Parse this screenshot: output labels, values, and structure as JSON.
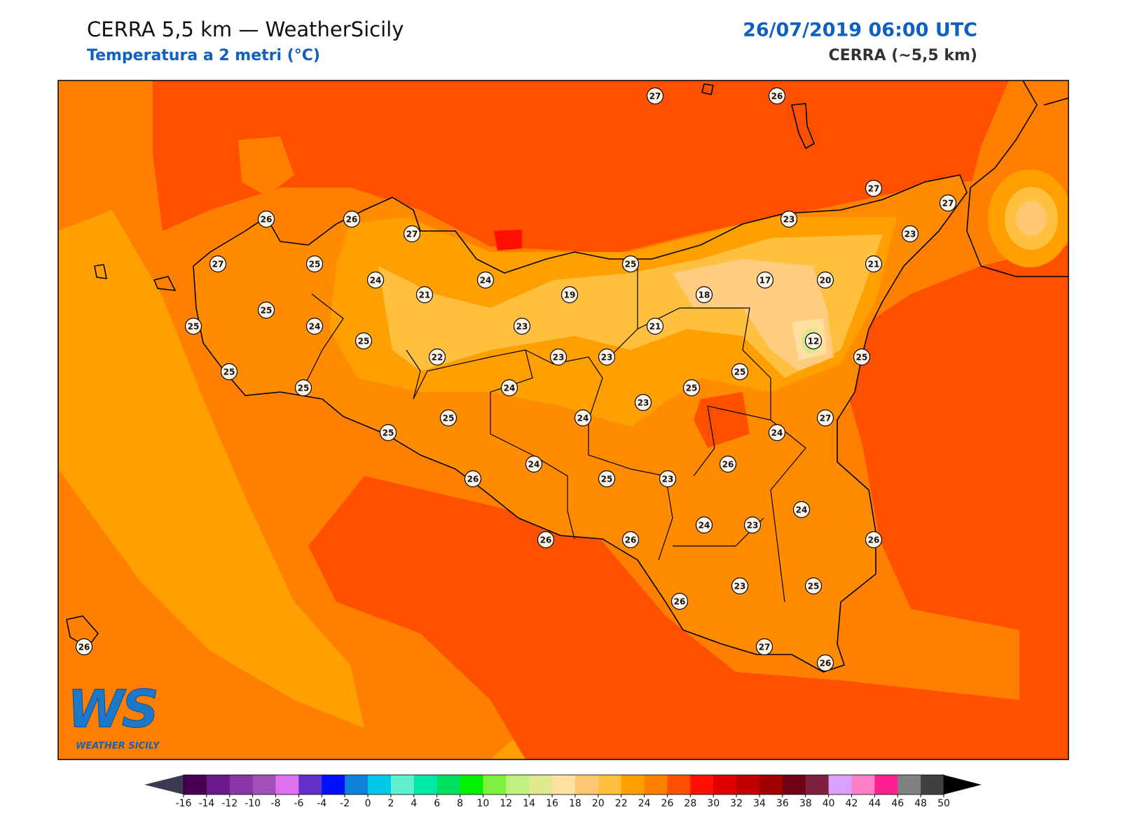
{
  "header": {
    "title": "CERRA 5,5 km — WeatherSicily",
    "subtitle": "Temperatura a 2 metri (°C)",
    "run": "26/07/2019 06:00 UTC",
    "model": "CERRA (~5,5 km)"
  },
  "stations": [
    27,
    26,
    26,
    26,
    27,
    27,
    25,
    24,
    21,
    24,
    25,
    19,
    18,
    17,
    20,
    21,
    23,
    27,
    27,
    23,
    25,
    25,
    24,
    25,
    23,
    21,
    12,
    22,
    23,
    23,
    25,
    25,
    25,
    24,
    25,
    25,
    23,
    25,
    24,
    27,
    25,
    24,
    26,
    24,
    26,
    25,
    23,
    24,
    23,
    24,
    26,
    26,
    26,
    23,
    25,
    26,
    27,
    26,
    26
  ],
  "colorbar": {
    "ticks": [
      -16,
      -14,
      -12,
      -10,
      -8,
      -6,
      -4,
      -2,
      0,
      2,
      4,
      6,
      8,
      10,
      12,
      14,
      16,
      18,
      20,
      22,
      24,
      26,
      28,
      30,
      32,
      34,
      36,
      38,
      40,
      42,
      44,
      46,
      48,
      50
    ],
    "colors": [
      "#460050",
      "#6a1a8a",
      "#8a35a8",
      "#a050b8",
      "#e070f0",
      "#6030c8",
      "#0010ff",
      "#1080d8",
      "#00c8e8",
      "#60f0d0",
      "#00e8a8",
      "#00e060",
      "#00f000",
      "#80f040",
      "#c0f080",
      "#e0e890",
      "#ffe0a0",
      "#ffc870",
      "#ffc040",
      "#ffa000",
      "#ff8000",
      "#ff5000",
      "#ff1000",
      "#e00000",
      "#c00000",
      "#a00000",
      "#700018",
      "#802040",
      "#d8a0ff",
      "#ff80c8",
      "#ff2090",
      "#808080",
      "#404040"
    ],
    "under": "#3a3a50",
    "over": "#000000"
  },
  "logo": {
    "mark": "WS",
    "text": "WEATHER SICILY"
  }
}
